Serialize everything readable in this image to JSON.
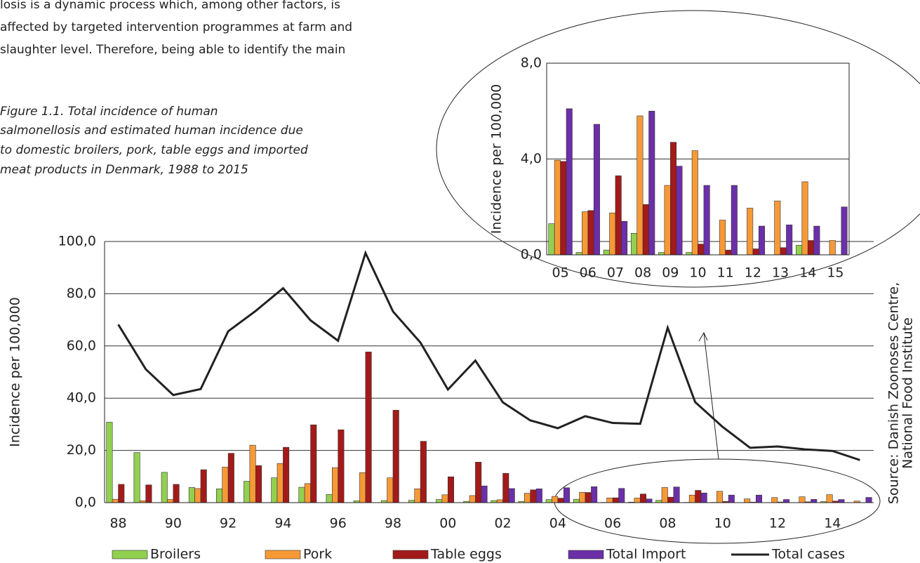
{
  "text_lines": [
    "losis is a dynamic process which, among other factors, is",
    "affected by targeted intervention programmes at farm and",
    "slaughter level. Therefore, being able to identify the main"
  ],
  "caption": [
    "Figure 1.1. Total incidence of human",
    "salmonellosis and estimated human incidence due",
    "to domestic broilers, pork, table eggs and imported",
    "meat products in Denmark, 1988 to 2015"
  ],
  "source_lines": [
    "Source: Danish Zoonoses Centre,",
    "National Food Institute"
  ],
  "chart_data": [
    {
      "type": "bar",
      "y_label": "Incidence per 100,000",
      "categories": [
        "88",
        null,
        "90",
        null,
        "92",
        null,
        "94",
        null,
        "96",
        null,
        "98",
        null,
        "00",
        null,
        "02",
        null,
        "04",
        null,
        "06",
        null,
        "08",
        null,
        "10",
        null,
        "12",
        null,
        "14",
        null
      ],
      "ylim": [
        0,
        100
      ],
      "yticks": [
        {
          "value": 0,
          "label": "0,0"
        },
        {
          "value": 20,
          "label": "20,0"
        },
        {
          "value": 40,
          "label": "40,0"
        },
        {
          "value": 60,
          "label": "60,0"
        },
        {
          "value": 80,
          "label": "80,0"
        },
        {
          "value": 100,
          "label": "100,0"
        }
      ],
      "grid": true,
      "series": [
        {
          "name": "Broilers",
          "color": "#92d050",
          "values": [
            30.8,
            19.2,
            11.6,
            5.8,
            5.3,
            8.2,
            9.5,
            5.9,
            3.1,
            0.7,
            0.8,
            0.9,
            1.2,
            0.5,
            0.8,
            0.5,
            1.2,
            1.3,
            0.1,
            0.2,
            0.9,
            0.1,
            0.1,
            0,
            0,
            0,
            0.4,
            0
          ]
        },
        {
          "name": "Pork",
          "color": "#f79a36",
          "values": [
            1.3,
            0.7,
            1.2,
            5.4,
            13.6,
            22.0,
            15.0,
            7.3,
            13.4,
            11.5,
            9.5,
            5.3,
            3.0,
            2.7,
            1.1,
            3.6,
            2.4,
            3.95,
            1.8,
            1.75,
            5.8,
            2.9,
            4.35,
            1.45,
            1.95,
            2.25,
            3.05,
            0.6
          ]
        },
        {
          "name": "Table eggs",
          "color": "#a31a1a",
          "values": [
            7.0,
            6.8,
            7.0,
            12.6,
            18.9,
            14.2,
            21.2,
            29.8,
            27.9,
            57.7,
            35.4,
            23.5,
            9.9,
            15.5,
            11.2,
            4.9,
            1.7,
            3.9,
            1.85,
            3.3,
            2.1,
            4.7,
            0.45,
            0.2,
            0.25,
            0.3,
            0.6,
            0
          ]
        },
        {
          "name": "Total Import",
          "color": "#6b2fa8",
          "values": [
            null,
            null,
            null,
            null,
            null,
            null,
            null,
            null,
            null,
            null,
            null,
            null,
            null,
            6.4,
            5.4,
            5.3,
            5.7,
            6.1,
            5.45,
            1.4,
            6.0,
            3.7,
            2.9,
            2.9,
            1.2,
            1.25,
            1.2,
            2.0
          ]
        },
        {
          "name": "Total cases",
          "type": "line",
          "color": "#222222",
          "values": [
            68.2,
            51.1,
            41.2,
            43.5,
            65.6,
            73.4,
            82.1,
            69.8,
            62.0,
            95.6,
            73.2,
            61.3,
            43.3,
            54.4,
            38.4,
            31.5,
            28.5,
            33.1,
            30.5,
            30.2,
            67.0,
            38.5,
            29.0,
            21.0,
            21.5,
            20.4,
            19.8,
            16.3
          ]
        }
      ]
    },
    {
      "type": "bar",
      "y_label": "Incidence per 100,000",
      "categories": [
        "05",
        "06",
        "07",
        "08",
        "09",
        "10",
        "11",
        "12",
        "13",
        "14",
        "15"
      ],
      "ylim": [
        0,
        8
      ],
      "yticks": [
        {
          "value": 0,
          "label": "0,0"
        },
        {
          "value": 4,
          "label": "4,0"
        },
        {
          "value": 8,
          "label": "8,0"
        }
      ],
      "grid": true,
      "series": [
        {
          "name": "Broilers",
          "color": "#92d050",
          "values": [
            1.3,
            0.1,
            0.2,
            0.9,
            0.1,
            0.1,
            0,
            0,
            0,
            0.4,
            0
          ]
        },
        {
          "name": "Pork",
          "color": "#f79a36",
          "values": [
            3.95,
            1.8,
            1.75,
            5.8,
            2.9,
            4.35,
            1.45,
            1.95,
            2.25,
            3.05,
            0.6
          ]
        },
        {
          "name": "Table eggs",
          "color": "#a31a1a",
          "values": [
            3.9,
            1.85,
            3.3,
            2.1,
            4.7,
            0.45,
            0.2,
            0.25,
            0.3,
            0.6,
            0
          ]
        },
        {
          "name": "Total Import",
          "color": "#6b2fa8",
          "values": [
            6.1,
            5.45,
            1.4,
            6.0,
            3.7,
            2.9,
            2.9,
            1.2,
            1.25,
            1.2,
            2.0
          ]
        }
      ]
    }
  ]
}
